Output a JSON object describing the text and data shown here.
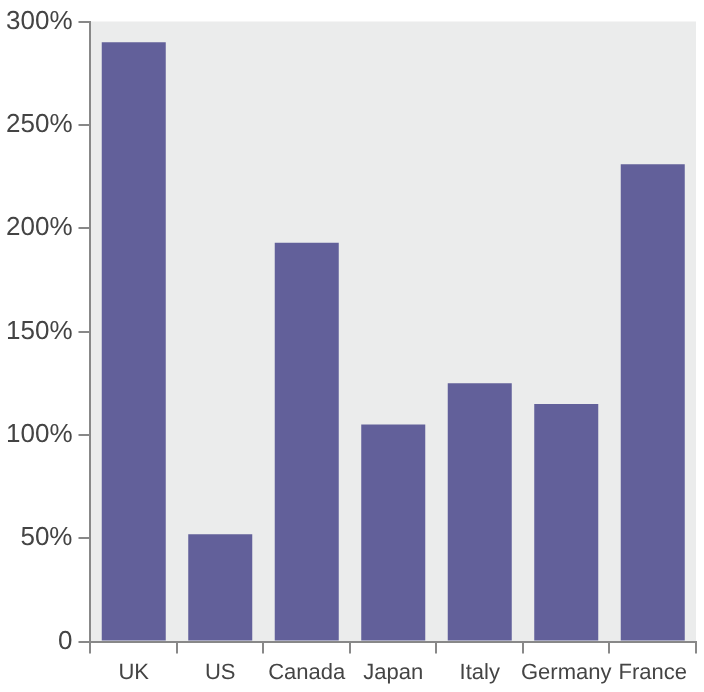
{
  "chart_data": {
    "type": "bar",
    "categories": [
      "UK",
      "US",
      "Canada",
      "Japan",
      "Italy",
      "Germany",
      "France"
    ],
    "values": [
      290,
      52,
      193,
      105,
      125,
      115,
      231
    ],
    "color": "#62609a",
    "ylim": [
      0,
      300
    ],
    "yticks": [
      {
        "value": 0,
        "label": "0"
      },
      {
        "value": 50,
        "label": "50%"
      },
      {
        "value": 100,
        "label": "100%"
      },
      {
        "value": 150,
        "label": "150%"
      },
      {
        "value": 200,
        "label": "200%"
      },
      {
        "value": 250,
        "label": "250%"
      },
      {
        "value": 300,
        "label": "300%"
      }
    ],
    "grid": false,
    "legend": false
  }
}
